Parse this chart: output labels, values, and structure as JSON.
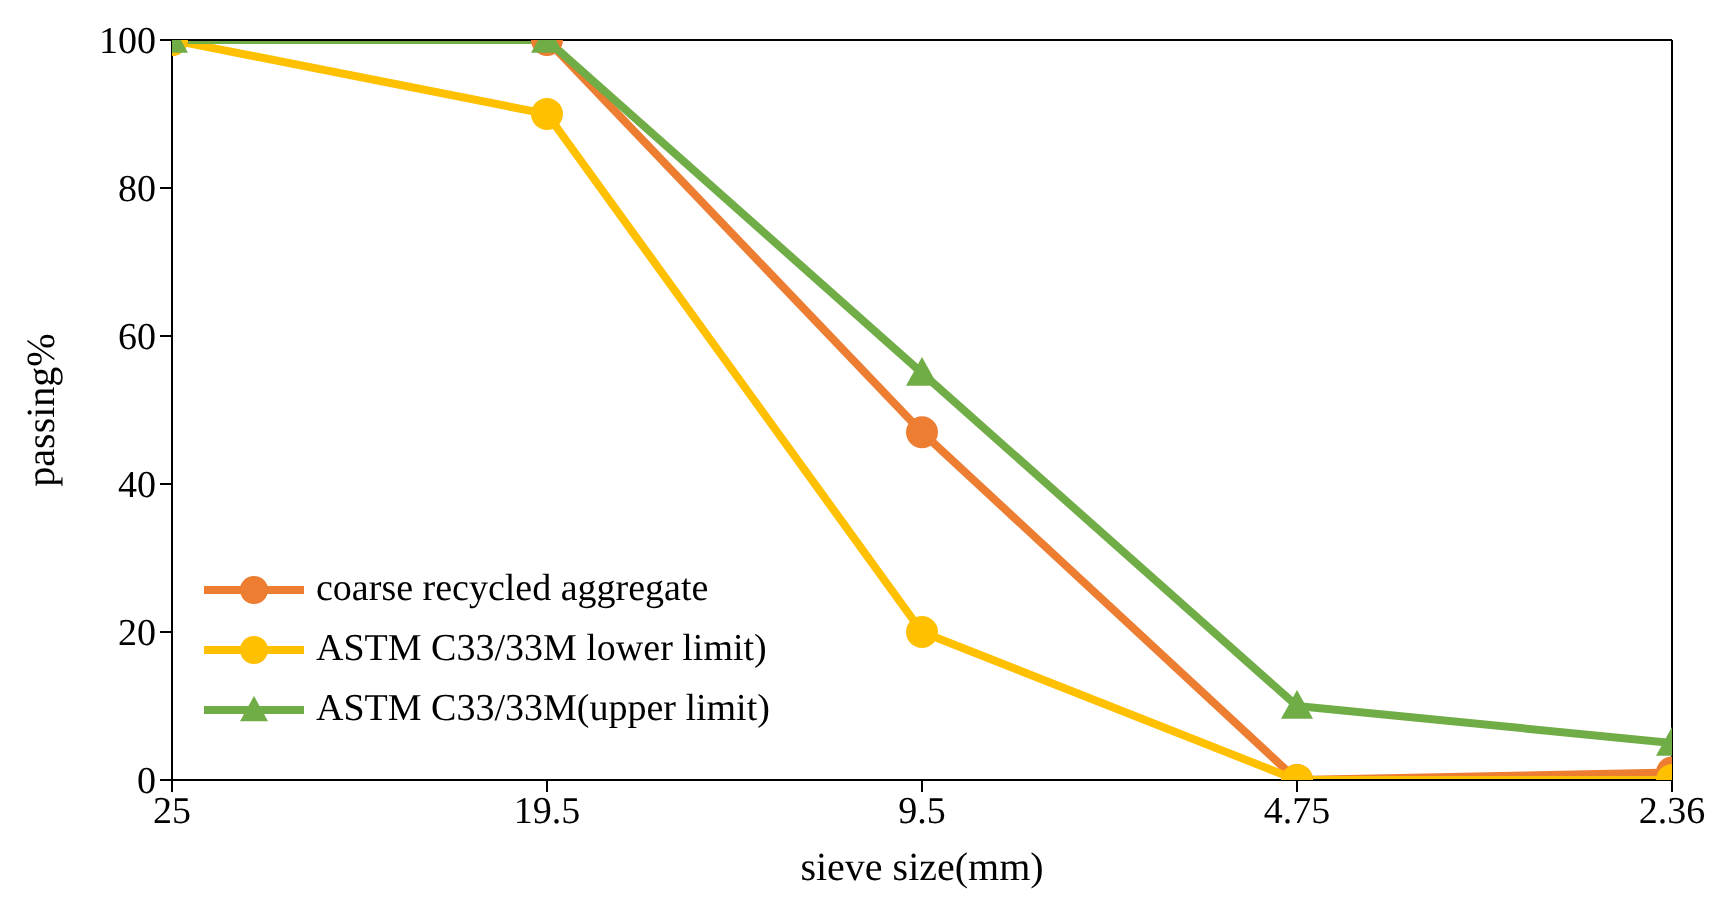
{
  "chart_data": {
    "type": "line",
    "xlabel": "sieve size(mm)",
    "ylabel": "passing%",
    "categories": [
      "25",
      "19.5",
      "9.5",
      "4.75",
      "2.36"
    ],
    "series": [
      {
        "name": "coarse recycled aggregate",
        "color": "#ed7d31",
        "marker": "circle",
        "values": [
          100,
          100,
          47,
          0,
          1
        ]
      },
      {
        "name": "ASTM C33/33M lower limit)",
        "color": "#ffc000",
        "marker": "circle",
        "values": [
          100,
          90,
          20,
          0,
          0
        ]
      },
      {
        "name": "ASTM C33/33M(upper limit)",
        "color": "#70ad47",
        "marker": "triangle",
        "values": [
          100,
          100,
          55,
          10,
          5
        ]
      }
    ],
    "ylim": [
      0,
      100
    ],
    "yticks": [
      0,
      20,
      40,
      60,
      80,
      100
    ],
    "grid": false,
    "legend": "bottom left",
    "line_style": "solid"
  }
}
